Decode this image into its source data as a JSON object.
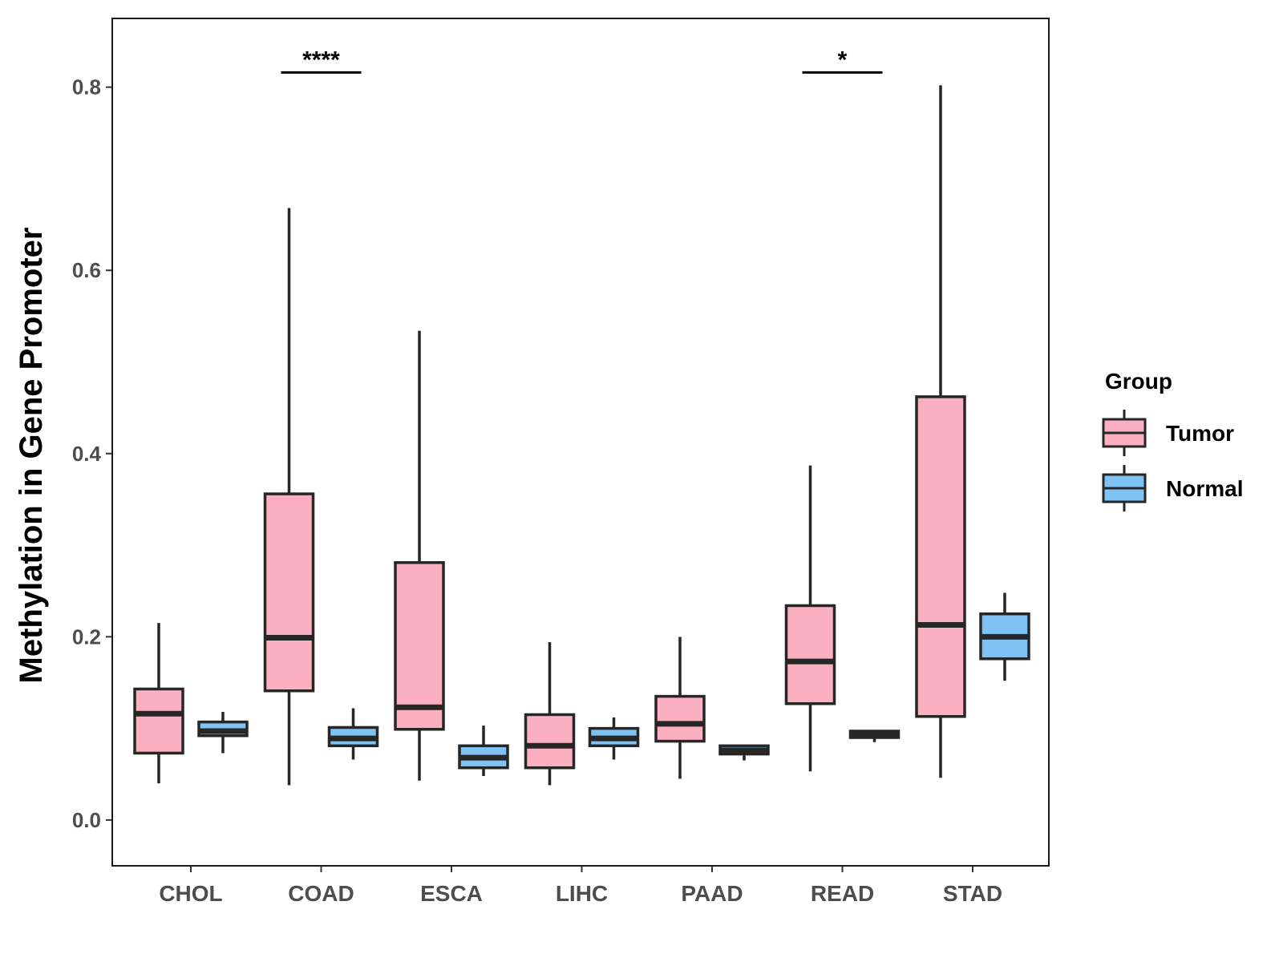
{
  "chart_data": {
    "type": "boxplot",
    "title": "",
    "xlabel": "",
    "ylabel": "Methylation in Gene Promoter",
    "ylim": [
      -0.05,
      0.875
    ],
    "y_ticks": [
      0.0,
      0.2,
      0.4,
      0.6,
      0.8
    ],
    "y_tick_labels": [
      "0.0",
      "0.2",
      "0.4",
      "0.6",
      "0.8"
    ],
    "categories": [
      "CHOL",
      "COAD",
      "ESCA",
      "LIHC",
      "PAAD",
      "READ",
      "STAD"
    ],
    "grid": false,
    "legend": {
      "title": "Group",
      "position": "right",
      "entries": [
        {
          "name": "Tumor",
          "color": "#FBB0C2"
        },
        {
          "name": "Normal",
          "color": "#7EC3F4"
        }
      ]
    },
    "series": [
      {
        "name": "Tumor",
        "color": "#FBB0C2",
        "boxes": [
          {
            "category": "CHOL",
            "min": 0.04,
            "q1": 0.073,
            "median": 0.116,
            "q3": 0.143,
            "max": 0.215
          },
          {
            "category": "COAD",
            "min": 0.038,
            "q1": 0.141,
            "median": 0.199,
            "q3": 0.356,
            "max": 0.668
          },
          {
            "category": "ESCA",
            "min": 0.043,
            "q1": 0.099,
            "median": 0.123,
            "q3": 0.281,
            "max": 0.534
          },
          {
            "category": "LIHC",
            "min": 0.038,
            "q1": 0.057,
            "median": 0.081,
            "q3": 0.115,
            "max": 0.194
          },
          {
            "category": "PAAD",
            "min": 0.045,
            "q1": 0.086,
            "median": 0.105,
            "q3": 0.135,
            "max": 0.2
          },
          {
            "category": "READ",
            "min": 0.053,
            "q1": 0.127,
            "median": 0.173,
            "q3": 0.234,
            "max": 0.387
          },
          {
            "category": "STAD",
            "min": 0.046,
            "q1": 0.113,
            "median": 0.213,
            "q3": 0.462,
            "max": 0.802
          }
        ]
      },
      {
        "name": "Normal",
        "color": "#7EC3F4",
        "boxes": [
          {
            "category": "CHOL",
            "min": 0.073,
            "q1": 0.092,
            "median": 0.097,
            "q3": 0.107,
            "max": 0.118
          },
          {
            "category": "COAD",
            "min": 0.066,
            "q1": 0.081,
            "median": 0.089,
            "q3": 0.101,
            "max": 0.122
          },
          {
            "category": "ESCA",
            "min": 0.048,
            "q1": 0.057,
            "median": 0.068,
            "q3": 0.081,
            "max": 0.103
          },
          {
            "category": "LIHC",
            "min": 0.066,
            "q1": 0.081,
            "median": 0.089,
            "q3": 0.1,
            "max": 0.112
          },
          {
            "category": "PAAD",
            "min": 0.065,
            "q1": 0.072,
            "median": 0.076,
            "q3": 0.081,
            "max": 0.081
          },
          {
            "category": "READ",
            "min": 0.085,
            "q1": 0.09,
            "median": 0.094,
            "q3": 0.097,
            "max": 0.097
          },
          {
            "category": "STAD",
            "min": 0.152,
            "q1": 0.176,
            "median": 0.2,
            "q3": 0.225,
            "max": 0.248
          }
        ]
      }
    ],
    "annotations": [
      {
        "category": "COAD",
        "text": "****",
        "y": 0.816
      },
      {
        "category": "READ",
        "text": "*",
        "y": 0.816
      }
    ]
  }
}
